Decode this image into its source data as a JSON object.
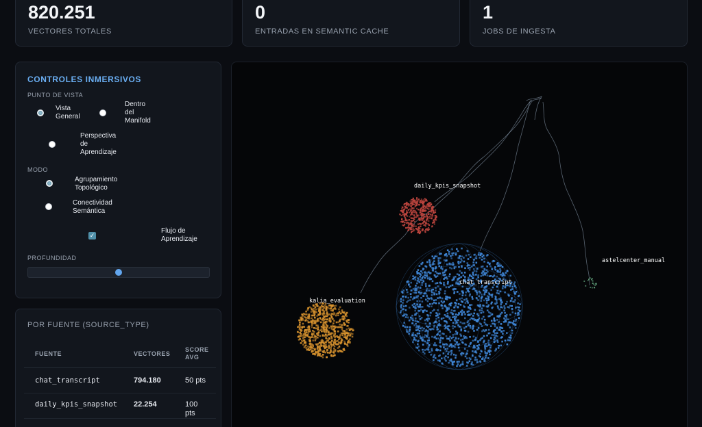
{
  "stats": [
    {
      "value": "820.251",
      "label": "VECTORES TOTALES"
    },
    {
      "value": "0",
      "label": "ENTRADAS EN SEMANTIC CACHE"
    },
    {
      "value": "1",
      "label": "JOBS DE INGESTA"
    }
  ],
  "controls": {
    "title": "CONTROLES INMERSIVOS",
    "viewpoint_label": "PUNTO DE VISTA",
    "viewpoint_options": [
      {
        "line1": "Vista",
        "line2": "General",
        "line3": "",
        "checked": true
      },
      {
        "line1": "Dentro",
        "line2": "del",
        "line3": "Manifold",
        "checked": false
      },
      {
        "line1": "Perspectiva",
        "line2": "de",
        "line3": "Aprendizaje",
        "checked": false
      }
    ],
    "mode_label": "MODO",
    "mode_options": [
      {
        "line1": "Agrupamiento",
        "line2": "Topológico",
        "checked": true
      },
      {
        "line1": "Conectividad",
        "line2": "Semántica",
        "checked": false
      }
    ],
    "flow": {
      "line1": "Flujo de",
      "line2": "Aprendizaje",
      "checked": true
    },
    "depth_label": "PROFUNDIDAD",
    "depth_value": 0.5
  },
  "sources": {
    "title": "POR FUENTE (SOURCE_TYPE)",
    "headers": {
      "source": "FUENTE",
      "vectors": "VECTORES",
      "score_line1": "SCORE",
      "score_line2": "AVG"
    },
    "rows": [
      {
        "source": "chat_transcript",
        "vectors": "794.180",
        "score_line1": "50 pts",
        "score_line2": ""
      },
      {
        "source": "daily_kpis_snapshot",
        "vectors": "22.254",
        "score_line1": "100",
        "score_line2": "pts"
      }
    ]
  },
  "viz": {
    "clusters": [
      {
        "label": "daily_kpis_snapshot",
        "color": "#c0463f"
      },
      {
        "label": "chat_transcript",
        "color": "#3f86d6"
      },
      {
        "label": "kalia_evaluation",
        "color": "#d5912e"
      },
      {
        "label": "astelcenter_manual",
        "color": "#5fa07a"
      }
    ]
  }
}
